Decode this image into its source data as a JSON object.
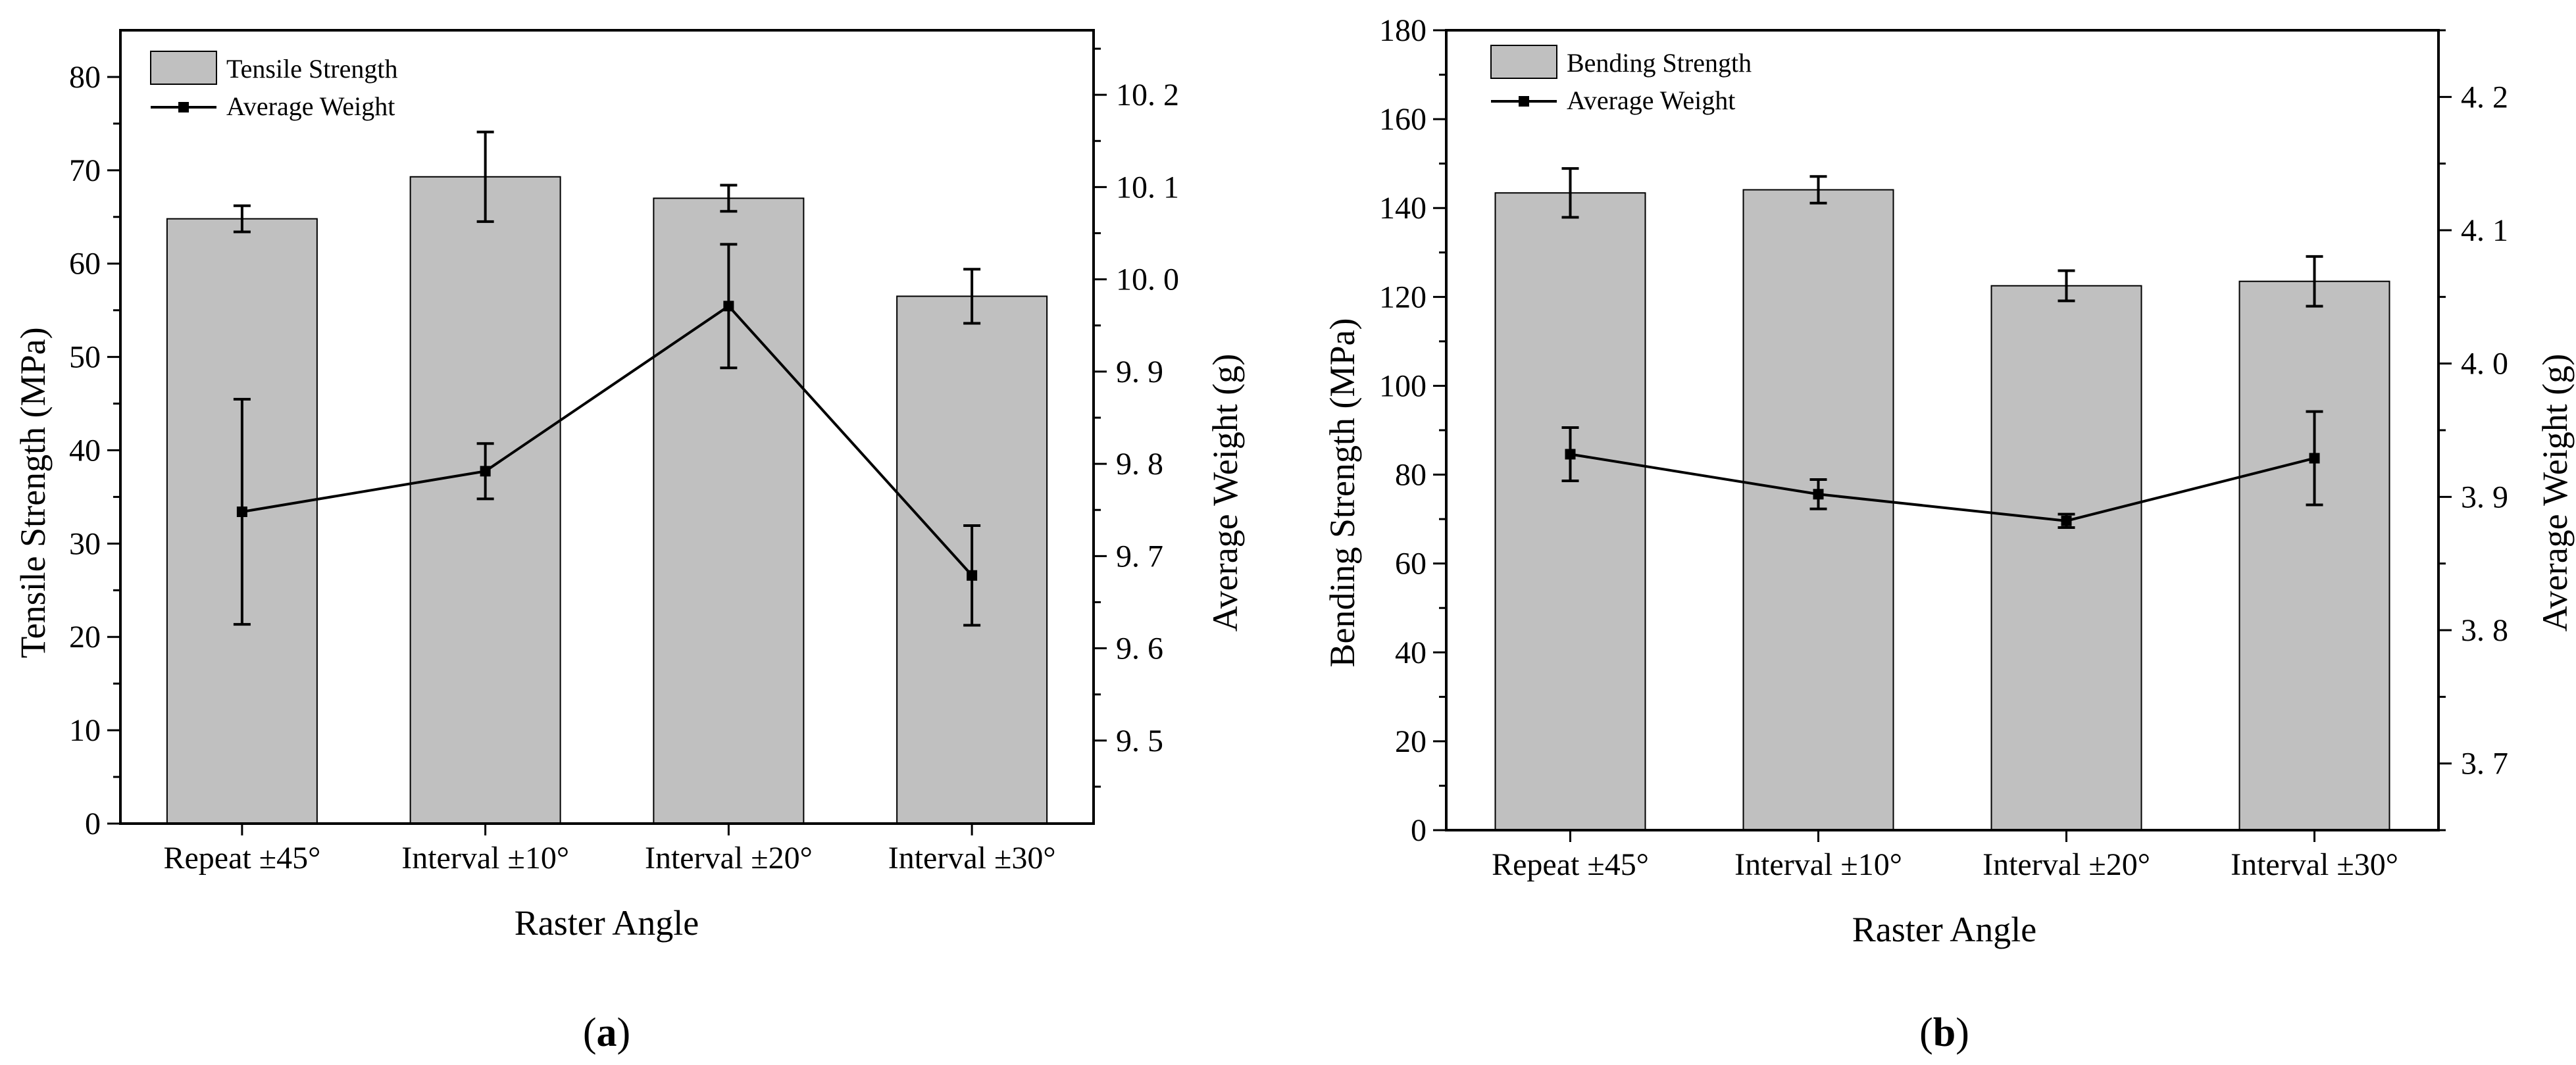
{
  "chart_data": [
    {
      "type": "bar",
      "panel": "a",
      "caption_letter": "a",
      "xlabel": "Raster Angle",
      "ylabel": "Tensile Strength (MPa)",
      "y2label": "Average Weight (g)",
      "categories": [
        "Repeat ±45°",
        "Interval ±10°",
        "Interval ±20°",
        "Interval ±30°"
      ],
      "ylim": [
        0,
        85
      ],
      "y_ticks": [
        0,
        10,
        20,
        30,
        40,
        50,
        60,
        70,
        80
      ],
      "y_tick_labels": [
        "0",
        "10",
        "20",
        "30",
        "40",
        "50",
        "60",
        "70",
        "80"
      ],
      "y2lim": [
        9.41,
        10.27
      ],
      "y2_ticks": [
        9.5,
        9.6,
        9.7,
        9.8,
        9.9,
        10.0,
        10.1,
        10.2
      ],
      "y2_tick_labels": [
        "9. 5",
        "9. 6",
        "9. 7",
        "9. 8",
        "9. 9",
        "10. 0",
        "10. 1",
        "10. 2"
      ],
      "series": [
        {
          "name": "Tensile Strength",
          "kind": "bar",
          "axis": "left",
          "values": [
            64.8,
            69.3,
            67.0,
            56.5
          ],
          "errors": [
            1.4,
            4.8,
            1.4,
            2.9
          ],
          "color": "#c0c0c0"
        },
        {
          "name": "Average Weight",
          "kind": "line",
          "axis": "right",
          "values": [
            9.748,
            9.792,
            9.971,
            9.679
          ],
          "errors": [
            0.122,
            0.03,
            0.067,
            0.054
          ],
          "color": "#000000"
        }
      ]
    },
    {
      "type": "bar",
      "panel": "b",
      "caption_letter": "b",
      "xlabel": "Raster Angle",
      "ylabel": "Bending Strength (MPa)",
      "y2label": "Average Weight (g)",
      "categories": [
        "Repeat ±45°",
        "Interval ±10°",
        "Interval ±20°",
        "Interval ±30°"
      ],
      "ylim": [
        0,
        180
      ],
      "y_ticks": [
        0,
        20,
        40,
        60,
        80,
        100,
        120,
        140,
        160,
        180
      ],
      "y_tick_labels": [
        "0",
        "20",
        "40",
        "60",
        "80",
        "100",
        "120",
        "140",
        "160",
        "180"
      ],
      "y2lim": [
        3.65,
        4.25
      ],
      "y2_ticks": [
        3.7,
        3.8,
        3.9,
        4.0,
        4.1,
        4.2
      ],
      "y2_tick_labels": [
        "3. 7",
        "3. 8",
        "3. 9",
        "4. 0",
        "4. 1",
        "4. 2"
      ],
      "series": [
        {
          "name": "Bending Strength",
          "kind": "bar",
          "axis": "left",
          "values": [
            143.4,
            144.1,
            122.5,
            123.5
          ],
          "errors": [
            5.5,
            3.0,
            3.4,
            5.6
          ],
          "color": "#c0c0c0"
        },
        {
          "name": "Average Weight",
          "kind": "line",
          "axis": "right",
          "values": [
            3.932,
            3.902,
            3.882,
            3.929
          ],
          "errors": [
            0.02,
            0.011,
            0.005,
            0.035
          ],
          "color": "#000000"
        }
      ]
    }
  ]
}
